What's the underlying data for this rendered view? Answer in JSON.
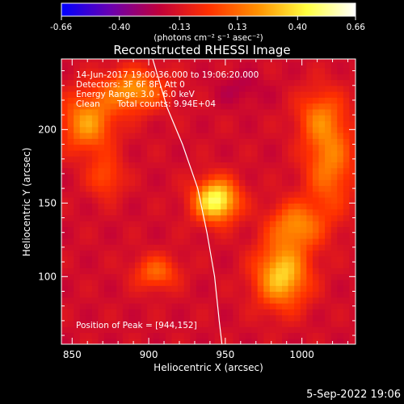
{
  "colorbar": {
    "ticks": [
      "-0.66",
      "-0.40",
      "-0.13",
      "0.13",
      "0.40",
      "0.66"
    ],
    "tick_values": [
      -0.66,
      -0.4,
      -0.13,
      0.13,
      0.4,
      0.66
    ],
    "range": [
      -0.66,
      0.66
    ],
    "units_text": "(photons cm⁻² s⁻¹ asec⁻²)",
    "stops": [
      "#0000ff",
      "#6a00b0",
      "#c0003a",
      "#ff3000",
      "#ff9000",
      "#ffff40",
      "#ffffff"
    ]
  },
  "chart_data": {
    "type": "heatmap",
    "title": "Reconstructed RHESSI Image",
    "xlabel": "Heliocentric X (arcsec)",
    "ylabel": "Heliocentric Y (arcsec)",
    "xlim": [
      843,
      1035
    ],
    "ylim": [
      54,
      248
    ],
    "xticks": [
      850,
      900,
      950,
      1000
    ],
    "yticks": [
      100,
      150,
      200
    ],
    "sources": [
      {
        "x": 944,
        "y": 152,
        "sx": 10,
        "sy": 10,
        "amp": 0.66
      },
      {
        "x": 987,
        "y": 101,
        "sx": 12,
        "sy": 15,
        "amp": 0.52
      },
      {
        "x": 996,
        "y": 135,
        "sx": 12,
        "sy": 11,
        "amp": 0.35
      },
      {
        "x": 905,
        "y": 103,
        "sx": 10,
        "sy": 8,
        "amp": 0.28
      },
      {
        "x": 860,
        "y": 205,
        "sx": 12,
        "sy": 14,
        "amp": 0.4
      },
      {
        "x": 890,
        "y": 227,
        "sx": 14,
        "sy": 10,
        "amp": 0.4
      },
      {
        "x": 872,
        "y": 168,
        "sx": 8,
        "sy": 10,
        "amp": 0.22
      },
      {
        "x": 1018,
        "y": 180,
        "sx": 11,
        "sy": 25,
        "amp": 0.34
      },
      {
        "x": 1010,
        "y": 210,
        "sx": 10,
        "sy": 12,
        "amp": 0.2
      },
      {
        "x": 960,
        "y": 228,
        "sx": 12,
        "sy": 8,
        "amp": -0.08
      }
    ],
    "limb_curve": [
      [
        902,
        250
      ],
      [
        912,
        215
      ],
      [
        922,
        190
      ],
      [
        932,
        160
      ],
      [
        938,
        130
      ],
      [
        943,
        100
      ],
      [
        946,
        70
      ],
      [
        948,
        52
      ]
    ],
    "peak": {
      "x": 944,
      "y": 152
    }
  },
  "info": {
    "line1": "14-Jun-2017 19:00:36.000 to 19:06:20.000",
    "line2": "Detectors: 3F 6F 8F, Att 0",
    "line3": "Energy Range: 3.0 - 6.0 keV",
    "counts_label": "Clean",
    "counts_value": "Total counts: 9.94E+04"
  },
  "peak_text": "Position of Peak = [944,152]",
  "footer_date": "5-Sep-2022 19:06"
}
